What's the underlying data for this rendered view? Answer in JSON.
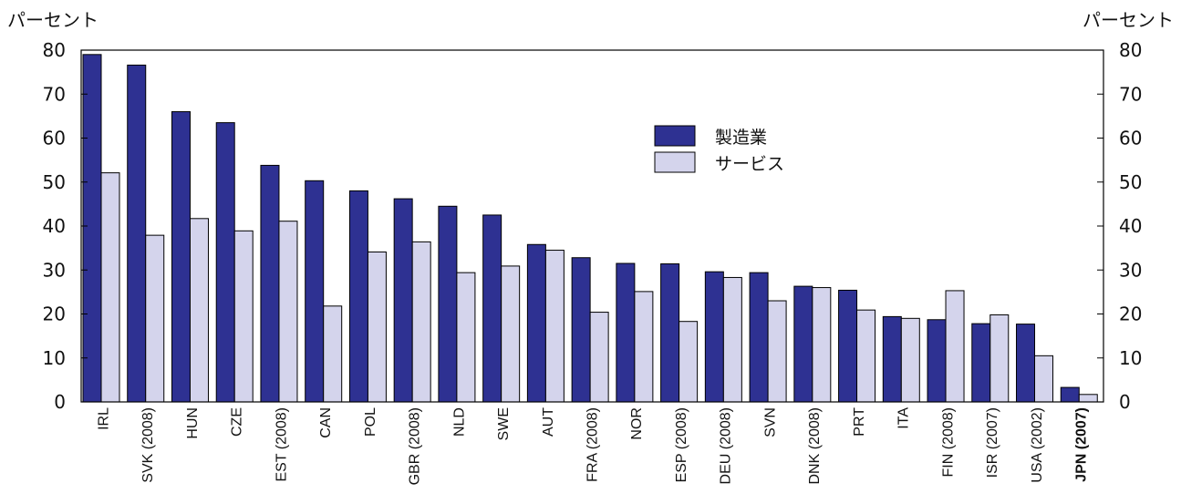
{
  "chart_data": {
    "type": "bar",
    "y_unit_left": "パーセント",
    "y_unit_right": "パーセント",
    "ylim": [
      0,
      80
    ],
    "yticks": [
      0,
      10,
      20,
      30,
      40,
      50,
      60,
      70,
      80
    ],
    "grid": false,
    "legend_position": "top-center-right",
    "categories": [
      "IRL",
      "SVK (2008)",
      "HUN",
      "CZE",
      "EST (2008)",
      "CAN",
      "POL",
      "GBR (2008)",
      "NLD",
      "SWE",
      "AUT",
      "FRA (2008)",
      "NOR",
      "ESP (2008)",
      "DEU (2008)",
      "SVN",
      "DNK (2008)",
      "PRT",
      "ITA",
      "FIN (2008)",
      "ISR (2007)",
      "USA (2002)",
      "JPN (2007)"
    ],
    "highlight_category": "JPN (2007)",
    "series": [
      {
        "name": "製造業",
        "color": "#2e3192",
        "values": [
          79.0,
          76.6,
          66.0,
          63.5,
          53.8,
          50.3,
          48.0,
          46.2,
          44.5,
          42.5,
          35.8,
          32.8,
          31.5,
          31.4,
          29.6,
          29.4,
          26.3,
          25.4,
          19.4,
          18.7,
          17.8,
          17.7,
          3.3
        ]
      },
      {
        "name": "サービス",
        "color": "#d4d4ec",
        "values": [
          52.1,
          37.9,
          41.7,
          38.9,
          41.1,
          21.8,
          34.1,
          36.4,
          29.4,
          30.9,
          34.5,
          20.4,
          25.1,
          18.3,
          28.3,
          23.0,
          26.0,
          20.9,
          19.0,
          25.3,
          19.8,
          10.5,
          1.7
        ]
      }
    ]
  }
}
